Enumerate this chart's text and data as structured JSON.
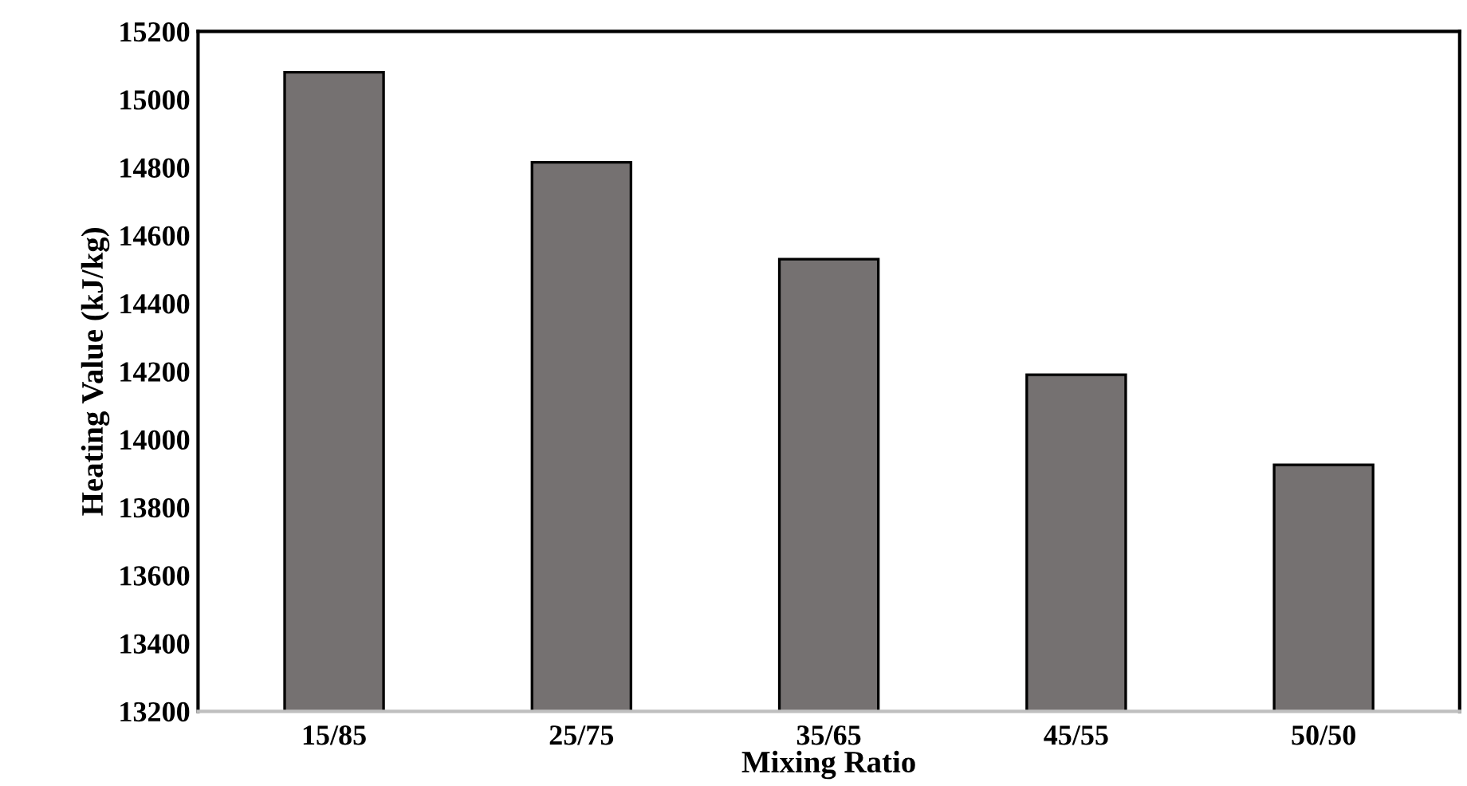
{
  "chart_data": {
    "type": "bar",
    "xlabel": "Mixing Ratio",
    "ylabel": "Heating Value (kJ/kg)",
    "categories": [
      "15/85",
      "25/75",
      "35/65",
      "45/55",
      "50/50"
    ],
    "values": [
      15080,
      14815,
      14530,
      14190,
      13925
    ],
    "color": "#757171",
    "ylim": [
      13200,
      15200
    ],
    "yticks": [
      13200,
      13400,
      13600,
      13800,
      14000,
      14200,
      14400,
      14600,
      14800,
      15000,
      15200
    ],
    "grid": false
  }
}
